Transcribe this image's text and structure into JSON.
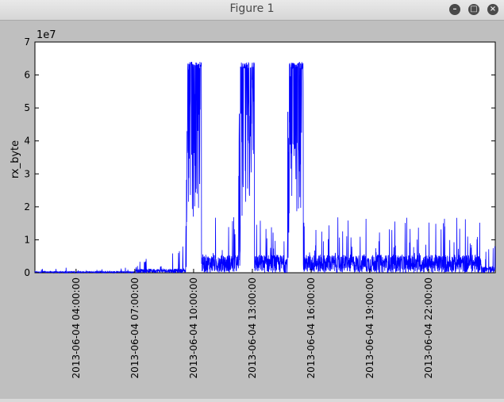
{
  "window": {
    "title": "Figure 1",
    "buttons": [
      {
        "name": "minimize",
        "glyph": "–"
      },
      {
        "name": "maximize",
        "glyph": "□"
      },
      {
        "name": "close",
        "glyph": "×"
      }
    ]
  },
  "chart_data": {
    "type": "line",
    "ylabel": "rx_byte",
    "y_offset_text": "1e7",
    "ylim": [
      0,
      7
    ],
    "yticks": [
      "0",
      "1",
      "2",
      "3",
      "4",
      "5",
      "6",
      "7"
    ],
    "xticks": [
      "2013-06-04 04:00:00",
      "2013-06-04 07:00:00",
      "2013-06-04 10:00:00",
      "2013-06-04 13:00:00",
      "2013-06-04 16:00:00",
      "2013-06-04 19:00:00",
      "2013-06-04 22:00:00"
    ],
    "xlim_hours": [
      1.9,
      25.4
    ],
    "grid": false,
    "line_color": "#0000ff",
    "series_note": "dense traffic trace",
    "bursts": [
      {
        "start_h": 9.6,
        "end_h": 10.4,
        "level": 6.4
      },
      {
        "start_h": 12.3,
        "end_h": 13.1,
        "level": 6.4
      },
      {
        "start_h": 14.8,
        "end_h": 15.6,
        "level": 6.4
      }
    ]
  }
}
